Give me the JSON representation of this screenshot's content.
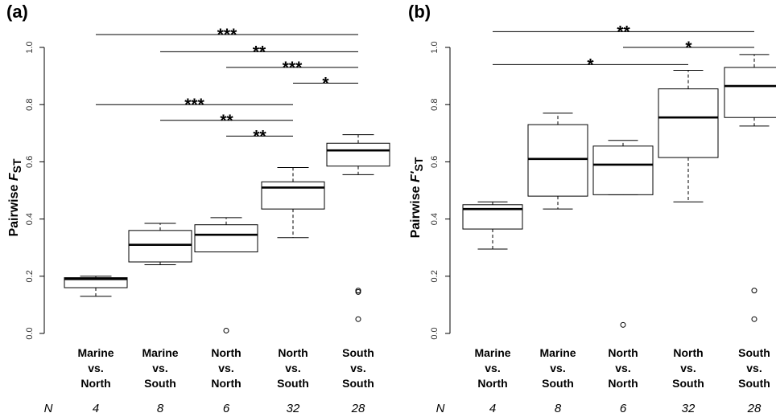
{
  "chart_data": [
    {
      "type": "box",
      "panel_label": "(a)",
      "ylabel_prefix": "Pairwise ",
      "ylabel_var": "F",
      "ylabel_sub": "ST",
      "ylim": [
        0,
        1.0
      ],
      "yticks": [
        "0.0",
        "0.2",
        "0.4",
        "0.6",
        "0.8",
        "1.0"
      ],
      "categories": [
        {
          "lines": [
            "Marine",
            "vs.",
            "North"
          ],
          "n": "4"
        },
        {
          "lines": [
            "Marine",
            "vs.",
            "South"
          ],
          "n": "8"
        },
        {
          "lines": [
            "North",
            "vs.",
            "North"
          ],
          "n": "6"
        },
        {
          "lines": [
            "North",
            "vs.",
            "South"
          ],
          "n": "32"
        },
        {
          "lines": [
            "South",
            "vs.",
            "South"
          ],
          "n": "28"
        }
      ],
      "n_label": "N",
      "boxes": [
        {
          "min": 0.13,
          "q1": 0.16,
          "median": 0.19,
          "q3": 0.195,
          "max": 0.2,
          "outliers": []
        },
        {
          "min": 0.24,
          "q1": 0.25,
          "median": 0.31,
          "q3": 0.36,
          "max": 0.385,
          "outliers": []
        },
        {
          "min": 0.285,
          "q1": 0.285,
          "median": 0.345,
          "q3": 0.38,
          "max": 0.405,
          "outliers": [
            0.01
          ]
        },
        {
          "min": 0.335,
          "q1": 0.435,
          "median": 0.51,
          "q3": 0.53,
          "max": 0.58,
          "outliers": []
        },
        {
          "min": 0.555,
          "q1": 0.585,
          "median": 0.64,
          "q3": 0.665,
          "max": 0.695,
          "outliers": [
            0.145,
            0.15,
            0.05
          ]
        }
      ],
      "significance": [
        {
          "from": 0,
          "to": 4,
          "y": 1.045,
          "label": "***"
        },
        {
          "from": 1,
          "to": 4,
          "y": 0.985,
          "label": "**"
        },
        {
          "from": 2,
          "to": 4,
          "y": 0.93,
          "label": "***"
        },
        {
          "from": 3,
          "to": 4,
          "y": 0.875,
          "label": "*"
        },
        {
          "from": 0,
          "to": 3,
          "y": 0.8,
          "label": "***"
        },
        {
          "from": 1,
          "to": 3,
          "y": 0.745,
          "label": "**"
        },
        {
          "from": 2,
          "to": 3,
          "y": 0.69,
          "label": "**"
        }
      ]
    },
    {
      "type": "box",
      "panel_label": "(b)",
      "ylabel_prefix": "Pairwise ",
      "ylabel_var": "F'",
      "ylabel_sub": "ST",
      "ylim": [
        0,
        1.0
      ],
      "yticks": [
        "0.0",
        "0.2",
        "0.4",
        "0.6",
        "0.8",
        "1.0"
      ],
      "categories": [
        {
          "lines": [
            "Marine",
            "vs.",
            "North"
          ],
          "n": "4"
        },
        {
          "lines": [
            "Marine",
            "vs.",
            "South"
          ],
          "n": "8"
        },
        {
          "lines": [
            "North",
            "vs.",
            "North"
          ],
          "n": "6"
        },
        {
          "lines": [
            "North",
            "vs.",
            "South"
          ],
          "n": "32"
        },
        {
          "lines": [
            "South",
            "vs.",
            "South"
          ],
          "n": "28"
        }
      ],
      "n_label": "N",
      "boxes": [
        {
          "min": 0.295,
          "q1": 0.365,
          "median": 0.435,
          "q3": 0.45,
          "max": 0.46,
          "outliers": []
        },
        {
          "min": 0.435,
          "q1": 0.48,
          "median": 0.61,
          "q3": 0.73,
          "max": 0.77,
          "outliers": []
        },
        {
          "min": 0.485,
          "q1": 0.485,
          "median": 0.59,
          "q3": 0.655,
          "max": 0.675,
          "outliers": [
            0.03
          ]
        },
        {
          "min": 0.46,
          "q1": 0.615,
          "median": 0.755,
          "q3": 0.855,
          "max": 0.92,
          "outliers": []
        },
        {
          "min": 0.725,
          "q1": 0.755,
          "median": 0.865,
          "q3": 0.93,
          "max": 0.975,
          "outliers": [
            0.15,
            0.05
          ]
        }
      ],
      "significance": [
        {
          "from": 0,
          "to": 4,
          "y": 1.055,
          "label": "**"
        },
        {
          "from": 2,
          "to": 4,
          "y": 1.0,
          "label": "*"
        },
        {
          "from": 0,
          "to": 3,
          "y": 0.94,
          "label": "*"
        }
      ]
    }
  ]
}
